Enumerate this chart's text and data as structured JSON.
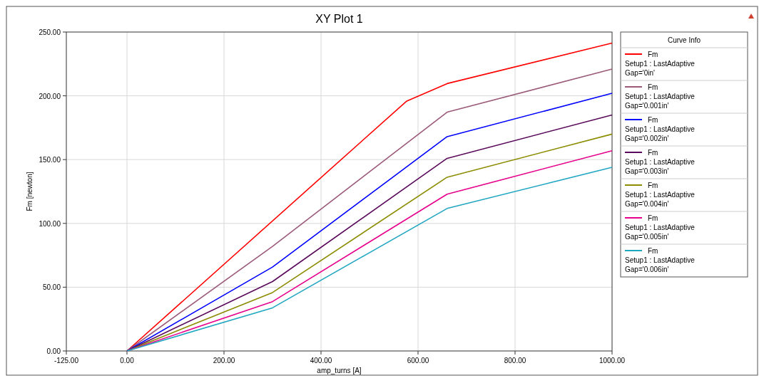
{
  "chart_data": {
    "type": "line",
    "title": "XY Plot 1",
    "xlabel": "amp_turns [A]",
    "ylabel": "Fm [newton]",
    "legend_title": "Curve Info",
    "legend": "right",
    "grid": true,
    "marker": "none",
    "line_style": "solid",
    "xlim": [
      -125,
      1000
    ],
    "xticks": [
      {
        "value": -125,
        "label": "-125.00"
      },
      {
        "value": 0,
        "label": "0.00"
      },
      {
        "value": 200,
        "label": "200.00"
      },
      {
        "value": 400,
        "label": "400.00"
      },
      {
        "value": 600,
        "label": "600.00"
      },
      {
        "value": 800,
        "label": "800.00"
      },
      {
        "value": 1000,
        "label": "1000.00"
      }
    ],
    "ylim": [
      0,
      250
    ],
    "yticks": [
      {
        "value": 0,
        "label": "0.00"
      },
      {
        "value": 50,
        "label": "50.00"
      },
      {
        "value": 100,
        "label": "100.00"
      },
      {
        "value": 150,
        "label": "150.00"
      },
      {
        "value": 200,
        "label": "200.00"
      },
      {
        "value": 250,
        "label": "250.00"
      }
    ],
    "series": [
      {
        "name": "Fm\nSetup1 : LastAdaptive\nGap='0in'",
        "color": "#ff0000",
        "x": [
          0,
          576,
          660,
          1000
        ],
        "values": [
          0,
          195.7,
          209.6,
          241.4
        ]
      },
      {
        "name": "Fm\nSetup1 : LastAdaptive\nGap='0.001in'",
        "color": "#9b5a7a",
        "x": [
          0,
          300,
          660,
          1000
        ],
        "values": [
          0,
          82,
          187.2,
          221
        ]
      },
      {
        "name": "Fm\nSetup1 : LastAdaptive\nGap='0.002in'",
        "color": "#0000ff",
        "x": [
          0,
          300,
          660,
          1000
        ],
        "values": [
          0,
          65.8,
          168,
          202
        ]
      },
      {
        "name": "Fm\nSetup1 : LastAdaptive\nGap='0.003in'",
        "color": "#5a0a5a",
        "x": [
          0,
          300,
          660,
          1000
        ],
        "values": [
          0,
          54.4,
          151,
          185
        ]
      },
      {
        "name": "Fm\nSetup1 : LastAdaptive\nGap='0.004in'",
        "color": "#8c8c00",
        "x": [
          0,
          300,
          660,
          1000
        ],
        "values": [
          0,
          45.8,
          136.2,
          170
        ]
      },
      {
        "name": "Fm\nSetup1 : LastAdaptive\nGap='0.005in'",
        "color": "#e6008c",
        "x": [
          0,
          300,
          660,
          1000
        ],
        "values": [
          0,
          38.7,
          122.9,
          157
        ]
      },
      {
        "name": "Fm\nSetup1 : LastAdaptive\nGap='0.006in'",
        "color": "#1fa6c0",
        "x": [
          0,
          300,
          660,
          1000
        ],
        "values": [
          0,
          33.8,
          111.7,
          144
        ]
      }
    ]
  }
}
